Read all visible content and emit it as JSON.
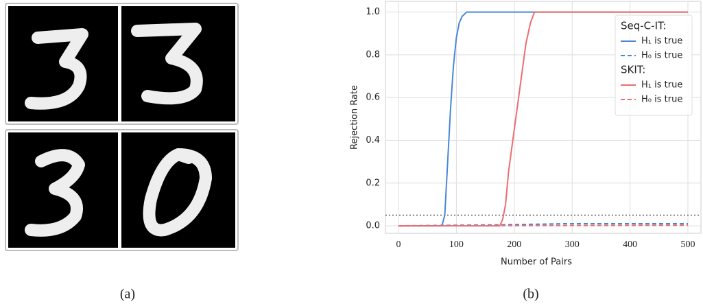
{
  "panel_a": {
    "caption": "(a)"
  },
  "panel_b": {
    "caption": "(b)"
  },
  "chart_data": {
    "type": "line",
    "xlabel": "Number of Pairs",
    "ylabel": "Rejection Rate",
    "xlim": [
      -22.5,
      522.5
    ],
    "ylim": [
      -0.035,
      1.05
    ],
    "xticks": [
      0,
      100,
      200,
      300,
      400,
      500
    ],
    "yticks": [
      {
        "value": 0,
        "label": "0.0"
      },
      {
        "value": 0.2,
        "label": "0.2"
      },
      {
        "value": 0.4,
        "label": "0.4"
      },
      {
        "value": 0.6,
        "label": "0.6"
      },
      {
        "value": 0.8,
        "label": "0.8"
      },
      {
        "value": 1,
        "label": "1.0"
      }
    ],
    "grid": true,
    "hline": 0.05,
    "legend": "upper right",
    "groups": [
      {
        "title": "Seq-C-IT:",
        "series": [
          {
            "name": "H₁ is true",
            "color": "#4a86d8",
            "dashed": false,
            "x": [
              0,
              75,
              80,
              85,
              90,
              95,
              100,
              105,
              110,
              118,
              500
            ],
            "values": [
              0,
              0,
              0.05,
              0.3,
              0.55,
              0.75,
              0.88,
              0.95,
              0.98,
              1,
              1
            ]
          },
          {
            "name": "H₀ is true",
            "color": "#4a86d8",
            "dashed": true,
            "x": [
              0,
              180,
              290,
              500
            ],
            "values": [
              0,
              0.005,
              0.01,
              0.01
            ]
          }
        ]
      },
      {
        "title": "SKIT:",
        "series": [
          {
            "name": "H₁ is true",
            "color": "#ec6b6f",
            "dashed": false,
            "x": [
              0,
              175,
              180,
              185,
              190,
              200,
              210,
              220,
              228,
              235,
              500
            ],
            "values": [
              0,
              0,
              0.03,
              0.1,
              0.25,
              0.45,
              0.65,
              0.85,
              0.95,
              1,
              1
            ]
          },
          {
            "name": "H₀ is true",
            "color": "#ec6b6f",
            "dashed": true,
            "x": [
              0,
              500
            ],
            "values": [
              0,
              0.003
            ]
          }
        ]
      }
    ]
  }
}
